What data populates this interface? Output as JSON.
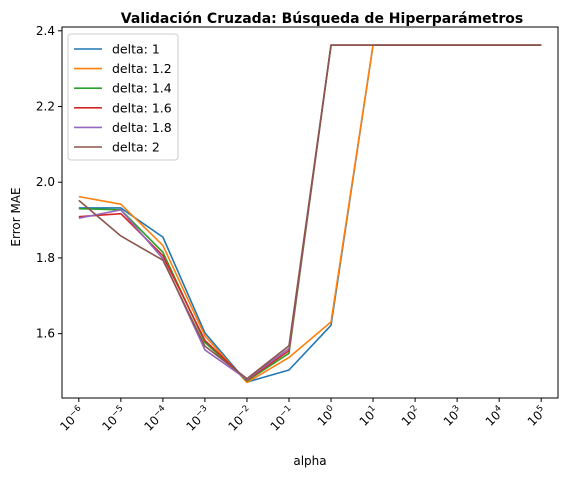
{
  "chart_data": {
    "type": "line",
    "title": "Validación Cruzada: Búsqueda de Hiperparámetros",
    "xlabel": "alpha",
    "ylabel": "Error MAE",
    "x_scale": "log",
    "x_ticks": [
      {
        "value": 1e-06,
        "base": "10",
        "exp": "−6"
      },
      {
        "value": 1e-05,
        "base": "10",
        "exp": "−5"
      },
      {
        "value": 0.0001,
        "base": "10",
        "exp": "−4"
      },
      {
        "value": 0.001,
        "base": "10",
        "exp": "−3"
      },
      {
        "value": 0.01,
        "base": "10",
        "exp": "−2"
      },
      {
        "value": 0.1,
        "base": "10",
        "exp": "−1"
      },
      {
        "value": 1,
        "base": "10",
        "exp": "0"
      },
      {
        "value": 10,
        "base": "10",
        "exp": "1"
      },
      {
        "value": 100,
        "base": "10",
        "exp": "2"
      },
      {
        "value": 1000,
        "base": "10",
        "exp": "3"
      },
      {
        "value": 10000,
        "base": "10",
        "exp": "4"
      },
      {
        "value": 100000,
        "base": "10",
        "exp": "5"
      }
    ],
    "y_ticks": [
      "1.6",
      "1.8",
      "2.0",
      "2.2",
      "2.4"
    ],
    "xlim": [
      3.98e-07,
      251000.0
    ],
    "ylim": [
      1.43,
      2.41
    ],
    "grid": false,
    "legend": "top-left",
    "x": [
      1e-06,
      1e-05,
      0.0001,
      0.001,
      0.01,
      0.1,
      1,
      10,
      100,
      1000,
      10000,
      100000
    ],
    "series": [
      {
        "name": "delta: 1",
        "color": "#1f77b4",
        "values": [
          1.932,
          1.932,
          1.855,
          1.602,
          1.472,
          1.504,
          1.622,
          2.362,
          2.362,
          2.362,
          2.362,
          2.362
        ]
      },
      {
        "name": "delta: 1.2",
        "color": "#ff7f0e",
        "values": [
          1.962,
          1.942,
          1.833,
          1.594,
          1.471,
          1.537,
          1.631,
          2.362,
          2.362,
          2.362,
          2.362,
          2.362
        ]
      },
      {
        "name": "delta: 1.4",
        "color": "#2ca02c",
        "values": [
          1.93,
          1.927,
          1.815,
          1.577,
          1.475,
          1.548,
          2.362,
          2.362,
          2.362,
          2.362,
          2.362,
          2.362
        ]
      },
      {
        "name": "delta: 1.6",
        "color": "#d62728",
        "values": [
          1.909,
          1.917,
          1.806,
          1.582,
          1.477,
          1.555,
          2.362,
          2.362,
          2.362,
          2.362,
          2.362,
          2.362
        ]
      },
      {
        "name": "delta: 1.8",
        "color": "#9467bd",
        "values": [
          1.905,
          1.927,
          1.798,
          1.557,
          1.479,
          1.561,
          2.362,
          2.362,
          2.362,
          2.362,
          2.362,
          2.362
        ]
      },
      {
        "name": "delta: 2",
        "color": "#8c564b",
        "values": [
          1.952,
          1.858,
          1.794,
          1.567,
          1.481,
          1.568,
          2.362,
          2.362,
          2.362,
          2.362,
          2.362,
          2.362
        ]
      }
    ]
  }
}
